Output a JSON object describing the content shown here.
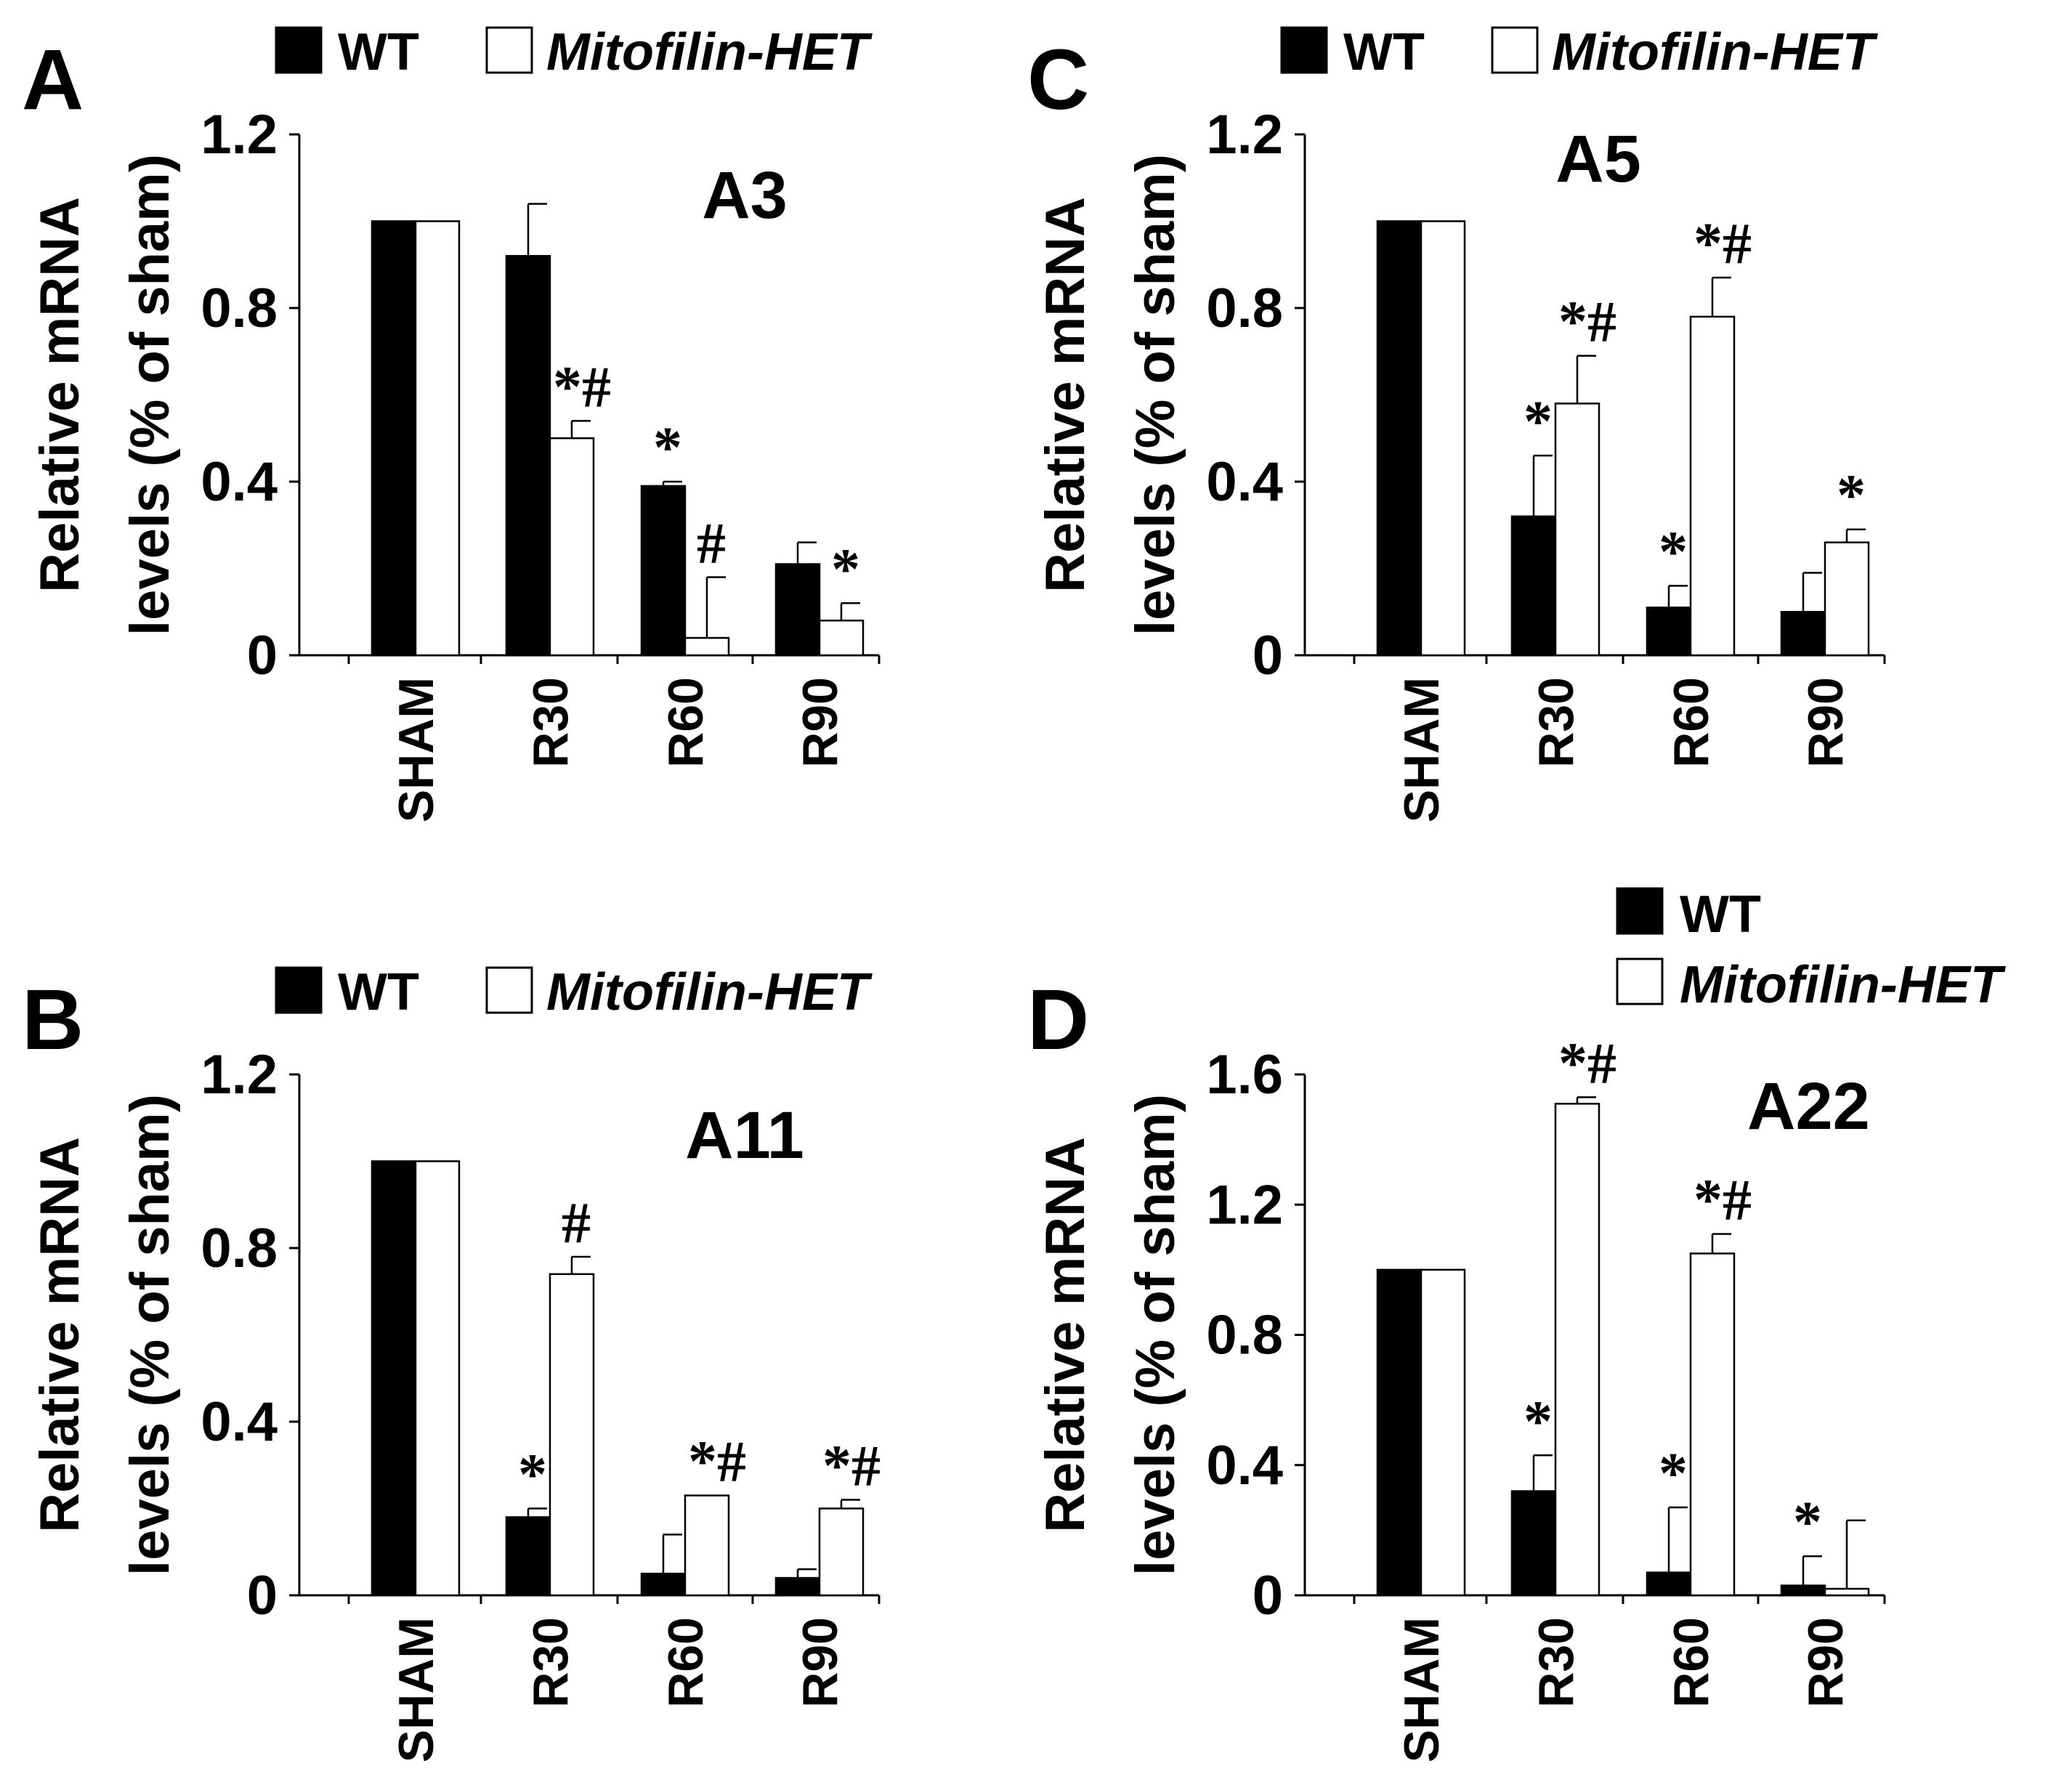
{
  "legend": {
    "wt": "WT",
    "het": "Mitofilin-HET"
  },
  "ylabel_line1": "Relative mRNA",
  "ylabel_line2": "levels (% of sham)",
  "colors": {
    "wt": "#000000",
    "het": "#ffffff",
    "axis": "#000000"
  },
  "chart_data": [
    {
      "panel": "A",
      "type": "bar",
      "title": "A3",
      "categories": [
        "SHAM",
        "R30",
        "R60",
        "R90"
      ],
      "ylim": [
        0,
        1.2
      ],
      "yticks": [
        "0",
        "0.4",
        "0.8",
        "1.2"
      ],
      "series": [
        {
          "name": "WT",
          "values": [
            1.0,
            0.92,
            0.39,
            0.21
          ],
          "errors": [
            0,
            0.12,
            0.01,
            0.05
          ]
        },
        {
          "name": "Mitofilin-HET",
          "values": [
            1.0,
            0.5,
            0.04,
            0.08
          ],
          "errors": [
            0,
            0.04,
            0.14,
            0.04
          ]
        }
      ],
      "annotations": [
        {
          "category": 1,
          "series": 1,
          "text": "*#"
        },
        {
          "category": 2,
          "series": 0,
          "text": "*"
        },
        {
          "category": 2,
          "series": 1,
          "text": "#"
        },
        {
          "category": 3,
          "series": 1,
          "text": "*"
        }
      ]
    },
    {
      "panel": "B",
      "type": "bar",
      "title": "A11",
      "categories": [
        "SHAM",
        "R30",
        "R60",
        "R90"
      ],
      "ylim": [
        0,
        1.2
      ],
      "yticks": [
        "0",
        "0.4",
        "0.8",
        "1.2"
      ],
      "series": [
        {
          "name": "WT",
          "values": [
            1.0,
            0.18,
            0.05,
            0.04
          ],
          "errors": [
            0,
            0.02,
            0.09,
            0.02
          ]
        },
        {
          "name": "Mitofilin-HET",
          "values": [
            1.0,
            0.74,
            0.23,
            0.2
          ],
          "errors": [
            0,
            0.04,
            0.0,
            0.02
          ]
        }
      ],
      "annotations": [
        {
          "category": 1,
          "series": 0,
          "text": "*"
        },
        {
          "category": 1,
          "series": 1,
          "text": "#"
        },
        {
          "category": 2,
          "series": 1,
          "text": "*#"
        },
        {
          "category": 3,
          "series": 1,
          "text": "*#"
        }
      ]
    },
    {
      "panel": "C",
      "type": "bar",
      "title": "A5",
      "categories": [
        "SHAM",
        "R30",
        "R60",
        "R90"
      ],
      "ylim": [
        0,
        1.2
      ],
      "yticks": [
        "0",
        "0.4",
        "0.8",
        "1.2"
      ],
      "series": [
        {
          "name": "WT",
          "values": [
            1.0,
            0.32,
            0.11,
            0.1
          ],
          "errors": [
            0,
            0.14,
            0.05,
            0.09
          ]
        },
        {
          "name": "Mitofilin-HET",
          "values": [
            1.0,
            0.58,
            0.78,
            0.26
          ],
          "errors": [
            0,
            0.11,
            0.09,
            0.03
          ]
        }
      ],
      "annotations": [
        {
          "category": 1,
          "series": 0,
          "text": "*"
        },
        {
          "category": 1,
          "series": 1,
          "text": "*#"
        },
        {
          "category": 2,
          "series": 0,
          "text": "*"
        },
        {
          "category": 2,
          "series": 1,
          "text": "*#"
        },
        {
          "category": 3,
          "series": 1,
          "text": "*"
        }
      ]
    },
    {
      "panel": "D",
      "type": "bar",
      "title": "A22",
      "categories": [
        "SHAM",
        "R30",
        "R60",
        "R90"
      ],
      "ylim": [
        0,
        1.6
      ],
      "yticks": [
        "0",
        "0.4",
        "0.8",
        "1.2",
        "1.6"
      ],
      "series": [
        {
          "name": "WT",
          "values": [
            1.0,
            0.32,
            0.07,
            0.03
          ],
          "errors": [
            0,
            0.11,
            0.2,
            0.09
          ]
        },
        {
          "name": "Mitofilin-HET",
          "values": [
            1.0,
            1.51,
            1.05,
            0.02
          ],
          "errors": [
            0,
            0.02,
            0.06,
            0.21
          ]
        }
      ],
      "annotations": [
        {
          "category": 1,
          "series": 0,
          "text": "*"
        },
        {
          "category": 1,
          "series": 1,
          "text": "*#"
        },
        {
          "category": 2,
          "series": 0,
          "text": "*"
        },
        {
          "category": 2,
          "series": 1,
          "text": "*#"
        },
        {
          "category": 3,
          "series": 0,
          "text": "*"
        }
      ]
    }
  ]
}
